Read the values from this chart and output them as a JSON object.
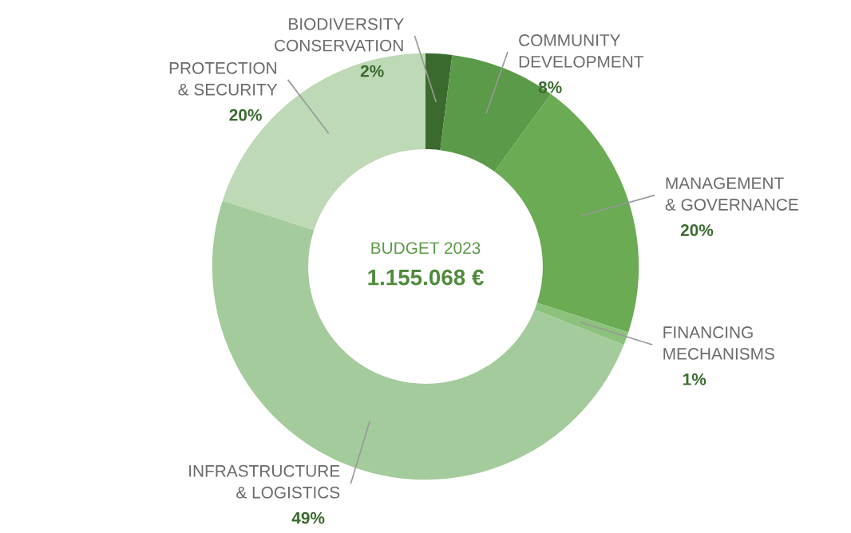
{
  "chart_data": {
    "type": "donut",
    "categories": [
      "BIODIVERSITY\nCONSERVATION",
      "COMMUNITY\nDEVELOPMENT",
      "MANAGEMENT\n& GOVERNANCE",
      "FINANCING\nMECHANISMS",
      "INFRASTRUCTURE\n& LOGISTICS",
      "PROTECTION\n& SECURITY"
    ],
    "values": [
      2,
      8,
      20,
      1,
      49,
      20
    ],
    "value_labels": [
      "2%",
      "8%",
      "20%",
      "1%",
      "49%",
      "20%"
    ],
    "colors": [
      "#3b6a2e",
      "#5b9a48",
      "#6aab53",
      "#8cc27c",
      "#a4cb9b",
      "#bdd9b5"
    ],
    "annotations": [
      "BUDGET 2023",
      "1.155.068 €"
    ]
  }
}
